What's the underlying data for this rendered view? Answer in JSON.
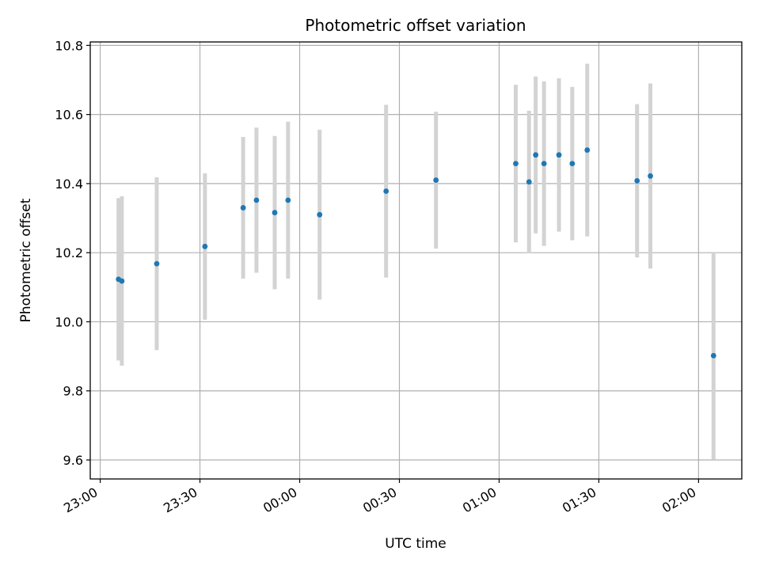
{
  "chart_data": {
    "type": "scatter",
    "title": "Photometric offset variation",
    "xlabel": "UTC time",
    "ylabel": "Photometric offset",
    "grid": true,
    "x_tick_labels": [
      "23:00",
      "23:30",
      "00:00",
      "00:30",
      "01:00",
      "01:30",
      "02:00"
    ],
    "y_tick_labels": [
      "9.6",
      "9.8",
      "10.0",
      "10.2",
      "10.4",
      "10.6",
      "10.8"
    ],
    "xlim": [
      "22:57",
      "02:13"
    ],
    "ylim": [
      9.545,
      10.81
    ],
    "colors": {
      "point": "#1f77b4",
      "errorbar": "#d3d3d3",
      "grid": "#b0b0b0"
    },
    "series": [
      {
        "points": [
          {
            "x": "23:05:30",
            "y": 10.123,
            "err": 0.235
          },
          {
            "x": "23:06:30",
            "y": 10.118,
            "err": 0.245
          },
          {
            "x": "23:17:00",
            "y": 10.168,
            "err": 0.25
          },
          {
            "x": "23:31:30",
            "y": 10.218,
            "err": 0.212
          },
          {
            "x": "23:43:00",
            "y": 10.33,
            "err": 0.205
          },
          {
            "x": "23:47:00",
            "y": 10.352,
            "err": 0.21
          },
          {
            "x": "23:52:30",
            "y": 10.316,
            "err": 0.222
          },
          {
            "x": "23:56:30",
            "y": 10.352,
            "err": 0.227
          },
          {
            "x": "00:06:00",
            "y": 10.31,
            "err": 0.246
          },
          {
            "x": "00:26:00",
            "y": 10.378,
            "err": 0.25
          },
          {
            "x": "00:41:00",
            "y": 10.41,
            "err": 0.198
          },
          {
            "x": "01:05:00",
            "y": 10.458,
            "err": 0.228
          },
          {
            "x": "01:09:00",
            "y": 10.405,
            "err": 0.206
          },
          {
            "x": "01:11:00",
            "y": 10.483,
            "err": 0.227
          },
          {
            "x": "01:13:30",
            "y": 10.458,
            "err": 0.238
          },
          {
            "x": "01:18:00",
            "y": 10.483,
            "err": 0.222
          },
          {
            "x": "01:22:00",
            "y": 10.458,
            "err": 0.222
          },
          {
            "x": "01:26:30",
            "y": 10.497,
            "err": 0.25
          },
          {
            "x": "01:41:30",
            "y": 10.408,
            "err": 0.222
          },
          {
            "x": "01:45:30",
            "y": 10.422,
            "err": 0.268
          },
          {
            "x": "02:04:30",
            "y": 9.902,
            "err": 0.3
          }
        ]
      }
    ]
  }
}
